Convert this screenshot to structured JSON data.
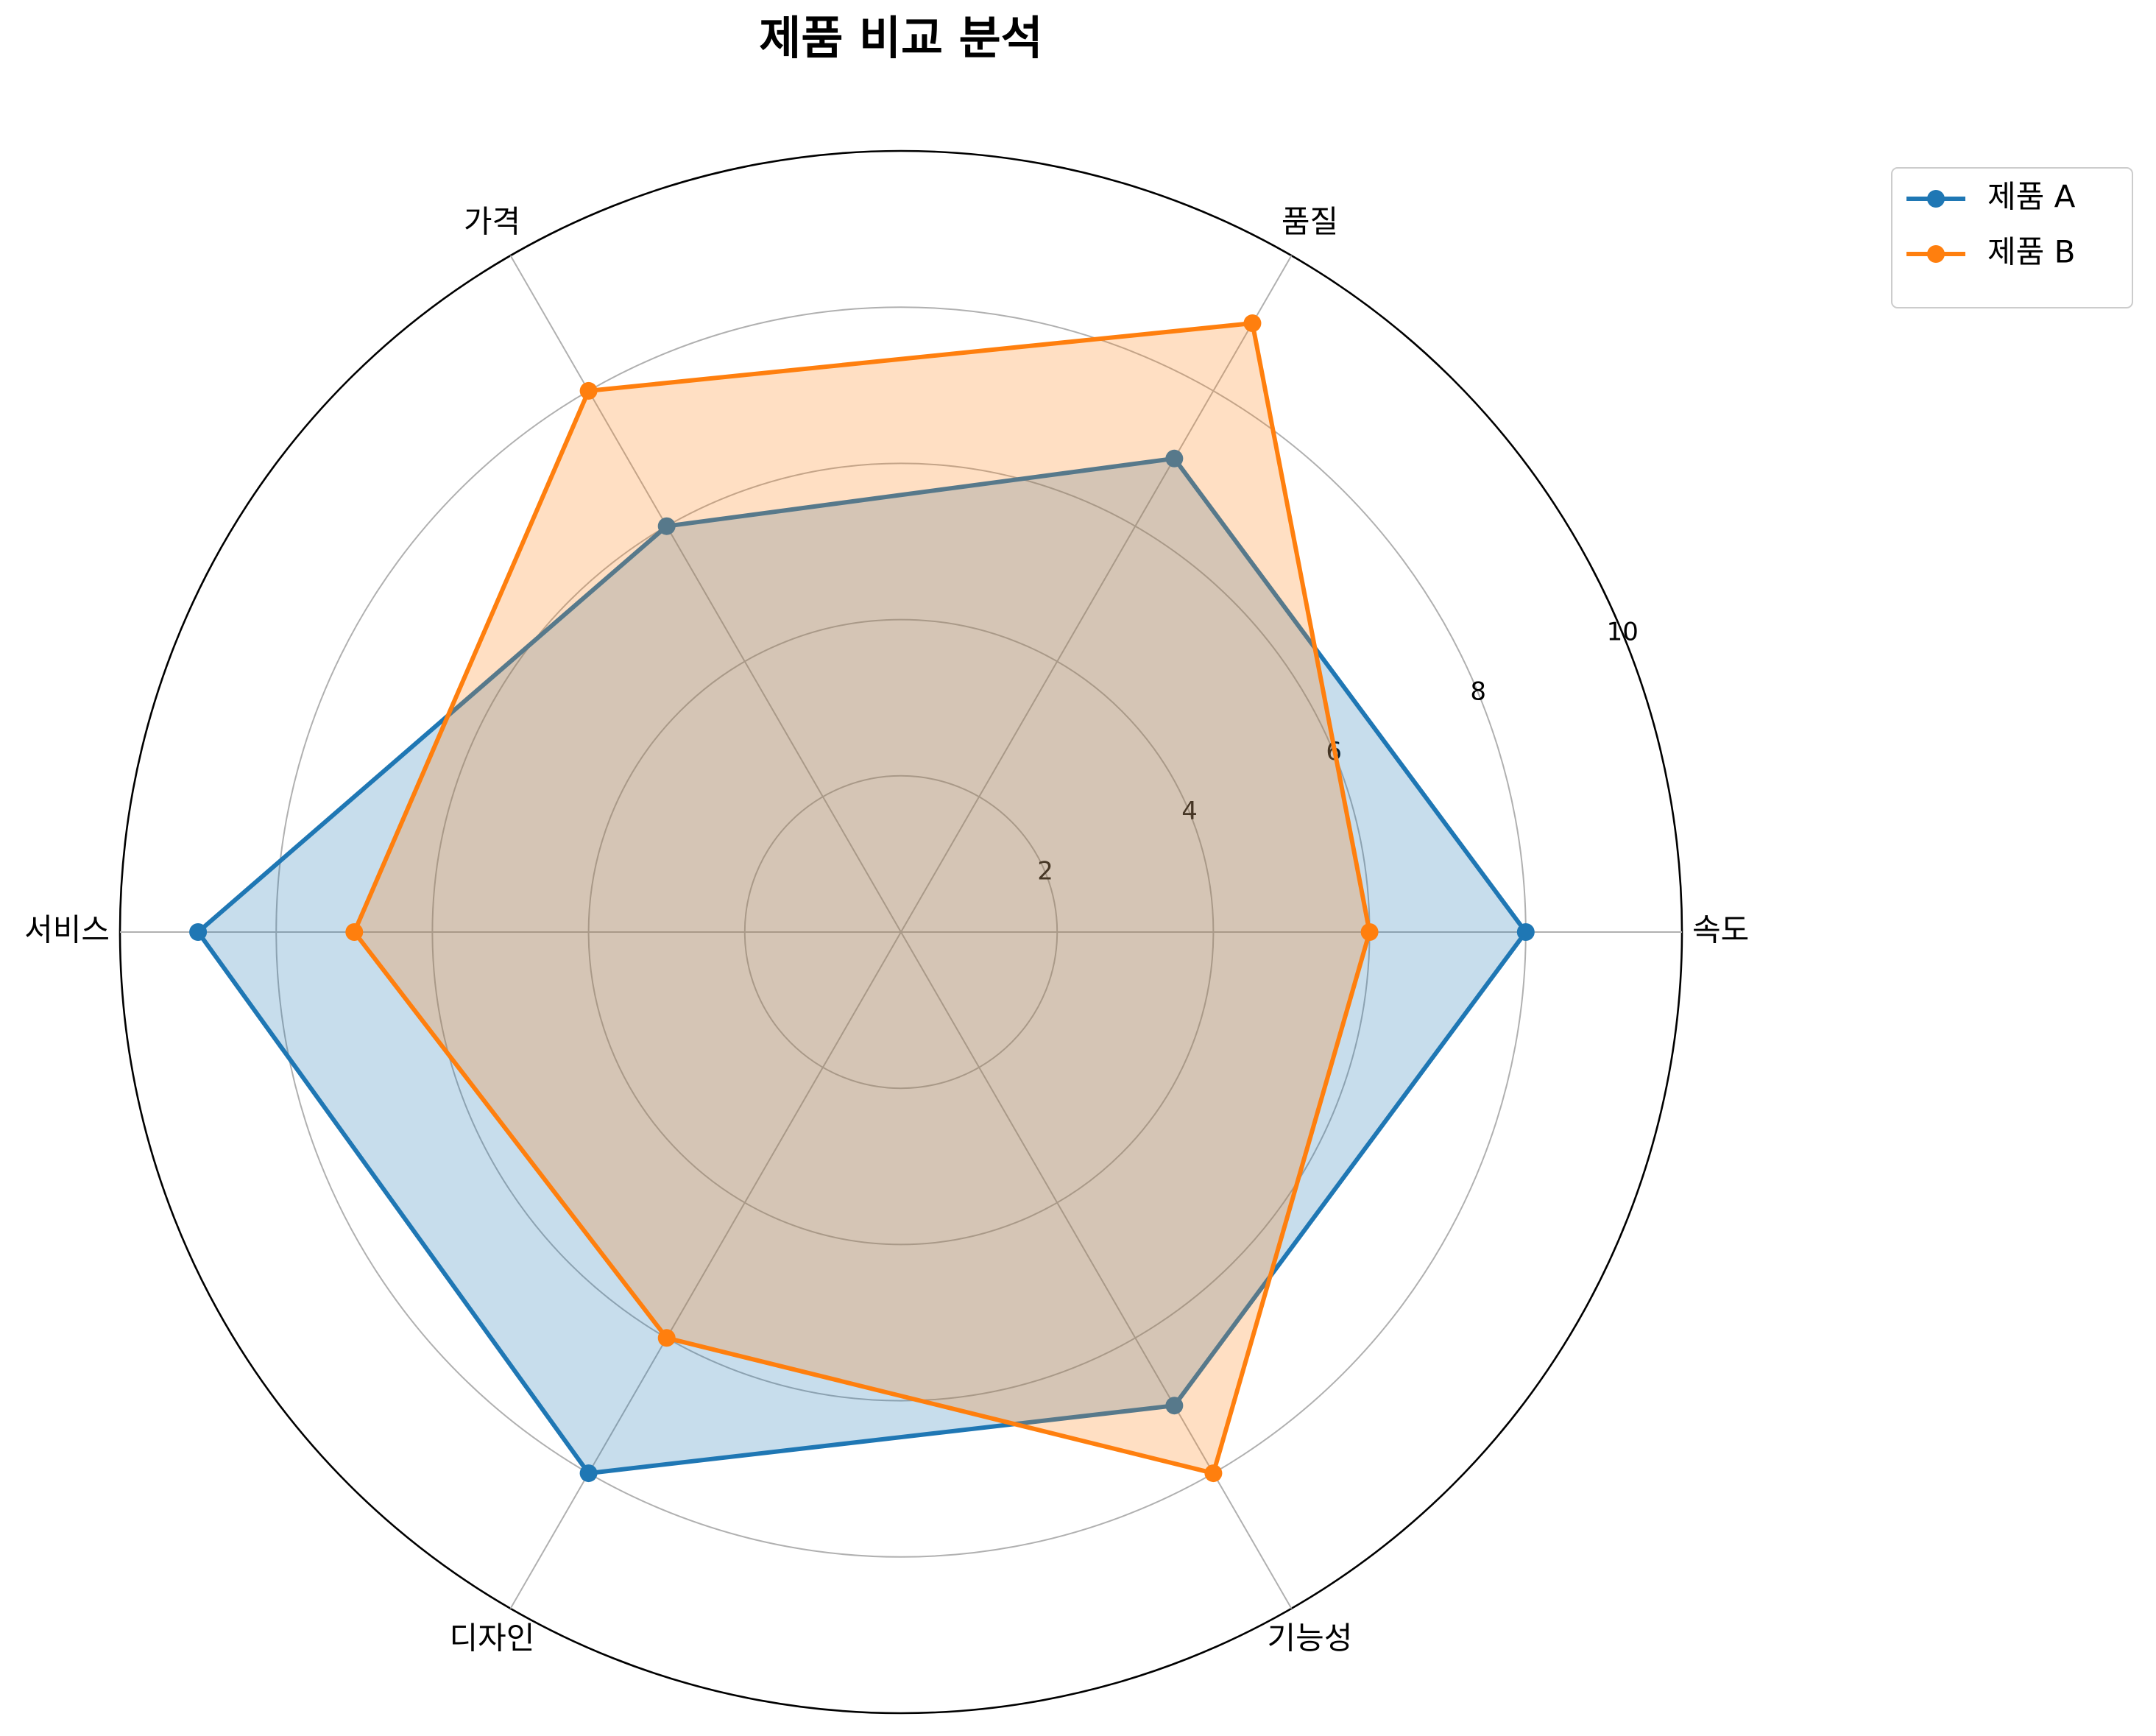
{
  "chart_data": {
    "type": "radar",
    "title": "제품 비교 분석",
    "categories": [
      "속도",
      "품질",
      "가격",
      "서비스",
      "디자인",
      "기능성"
    ],
    "series": [
      {
        "name": "제품 A",
        "color": "#1f77b4",
        "values": [
          8,
          7,
          6,
          9,
          8,
          7
        ]
      },
      {
        "name": "제품 B",
        "color": "#ff7f0e",
        "values": [
          6,
          9,
          8,
          7,
          6,
          8
        ]
      }
    ],
    "ylim": [
      0,
      10
    ],
    "yticks": [
      2,
      4,
      6,
      8,
      10
    ],
    "grid": true,
    "legend": "upper right"
  }
}
